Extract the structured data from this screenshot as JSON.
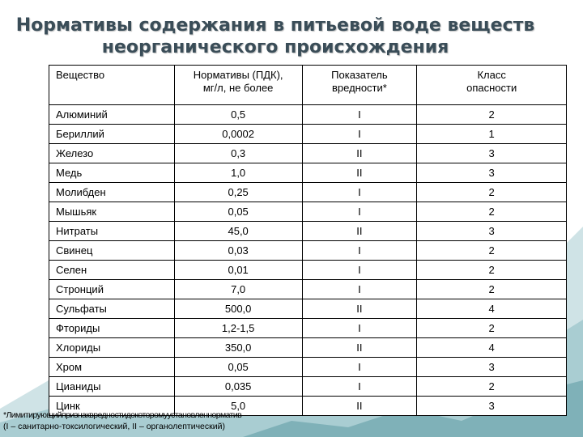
{
  "title": {
    "line1": "Нормативы содержания в питьевой воде веществ",
    "line2": "неорганического происхождения"
  },
  "table": {
    "headers": [
      {
        "lines": [
          "Вещество"
        ]
      },
      {
        "lines": [
          "Нормативы (ПДК),",
          "мг/л, не более"
        ]
      },
      {
        "lines": [
          "Показатель",
          "вредности*"
        ]
      },
      {
        "lines": [
          "Класс",
          "опасности"
        ]
      }
    ],
    "rows": [
      [
        "Алюминий",
        "0,5",
        "I",
        "2"
      ],
      [
        "Бериллий",
        "0,0002",
        "I",
        "1"
      ],
      [
        "Железо",
        "0,3",
        "II",
        "3"
      ],
      [
        "Медь",
        "1,0",
        "II",
        "3"
      ],
      [
        "Молибден",
        "0,25",
        "I",
        "2"
      ],
      [
        "Мышьяк",
        "0,05",
        "I",
        "2"
      ],
      [
        "Нитраты",
        "45,0",
        "II",
        "3"
      ],
      [
        "Свинец",
        "0,03",
        "I",
        "2"
      ],
      [
        "Селен",
        "0,01",
        "I",
        "2"
      ],
      [
        "Стронций",
        "7,0",
        "I",
        "2"
      ],
      [
        "Сульфаты",
        "500,0",
        "II",
        "4"
      ],
      [
        "Фториды",
        "1,2-1,5",
        "I",
        "2"
      ],
      [
        "Хлориды",
        "350,0",
        "II",
        "4"
      ],
      [
        "Хром",
        "0,05",
        "I",
        "3"
      ],
      [
        "Цианиды",
        "0,035",
        "I",
        "2"
      ],
      [
        "Цинк",
        "5,0",
        "II",
        "3"
      ]
    ]
  },
  "footnote": {
    "line1": "*Лимитирующийпризнаквредностидокоторомуустановленнорматив",
    "line2": "(I – санитарно-токсилогический,  II – органолептический)"
  },
  "colors": {
    "title": "#3a4d58",
    "background": "#ffffff",
    "mountain_light": "#cfe3e6",
    "mountain_mid": "#a9cdd2",
    "mountain_dark": "#7fb1b8"
  }
}
